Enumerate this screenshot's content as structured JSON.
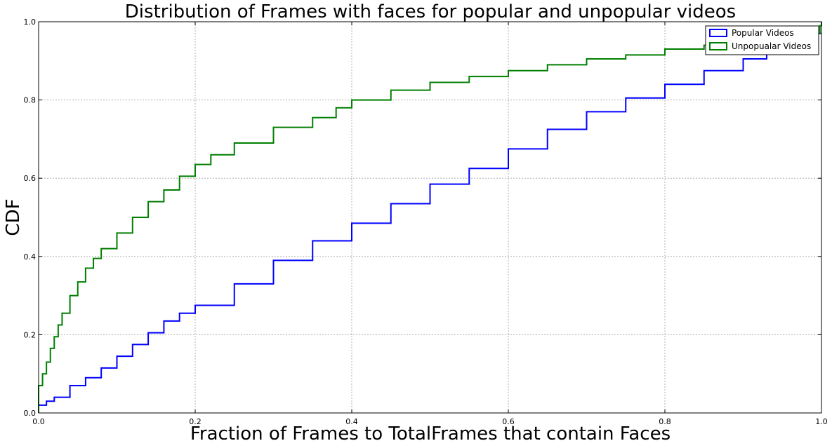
{
  "chart_data": {
    "type": "line",
    "title": "Distribution of Frames with faces for popular and unpopular videos",
    "xlabel": "Fraction of Frames to TotalFrames that contain Faces",
    "ylabel": "CDF",
    "xlim": [
      0.0,
      1.0
    ],
    "ylim": [
      0.0,
      1.0
    ],
    "xticks": [
      "0.0",
      "0.2",
      "0.4",
      "0.6",
      "0.8",
      "1.0"
    ],
    "yticks": [
      "0.0",
      "0.2",
      "0.4",
      "0.6",
      "0.8",
      "1.0"
    ],
    "grid": true,
    "legend_position": "top-right",
    "series": [
      {
        "name": "Popular Videos",
        "color": "#0000ff",
        "x": [
          0.0,
          0.01,
          0.02,
          0.04,
          0.06,
          0.08,
          0.1,
          0.12,
          0.14,
          0.16,
          0.18,
          0.2,
          0.25,
          0.3,
          0.35,
          0.4,
          0.45,
          0.5,
          0.55,
          0.6,
          0.65,
          0.7,
          0.75,
          0.8,
          0.85,
          0.9,
          0.93,
          0.95,
          1.0
        ],
        "y": [
          0.02,
          0.03,
          0.04,
          0.07,
          0.09,
          0.115,
          0.145,
          0.175,
          0.205,
          0.235,
          0.255,
          0.275,
          0.33,
          0.39,
          0.44,
          0.485,
          0.535,
          0.585,
          0.625,
          0.675,
          0.725,
          0.77,
          0.805,
          0.84,
          0.875,
          0.905,
          0.925,
          0.97,
          0.97
        ]
      },
      {
        "name": " Unpopualar Videos",
        "color": "#007f00",
        "x": [
          0.0,
          0.005,
          0.01,
          0.015,
          0.02,
          0.025,
          0.03,
          0.04,
          0.05,
          0.06,
          0.07,
          0.08,
          0.1,
          0.12,
          0.14,
          0.16,
          0.18,
          0.2,
          0.22,
          0.25,
          0.3,
          0.35,
          0.38,
          0.4,
          0.45,
          0.5,
          0.55,
          0.6,
          0.65,
          0.7,
          0.75,
          0.8,
          0.85,
          0.9,
          0.95,
          0.99,
          0.998,
          1.0
        ],
        "y": [
          0.07,
          0.1,
          0.13,
          0.165,
          0.195,
          0.225,
          0.255,
          0.3,
          0.335,
          0.37,
          0.395,
          0.42,
          0.46,
          0.5,
          0.54,
          0.57,
          0.605,
          0.635,
          0.66,
          0.69,
          0.73,
          0.755,
          0.78,
          0.8,
          0.825,
          0.845,
          0.86,
          0.875,
          0.89,
          0.905,
          0.915,
          0.93,
          0.94,
          0.95,
          0.96,
          0.97,
          0.99,
          1.0
        ]
      }
    ]
  }
}
